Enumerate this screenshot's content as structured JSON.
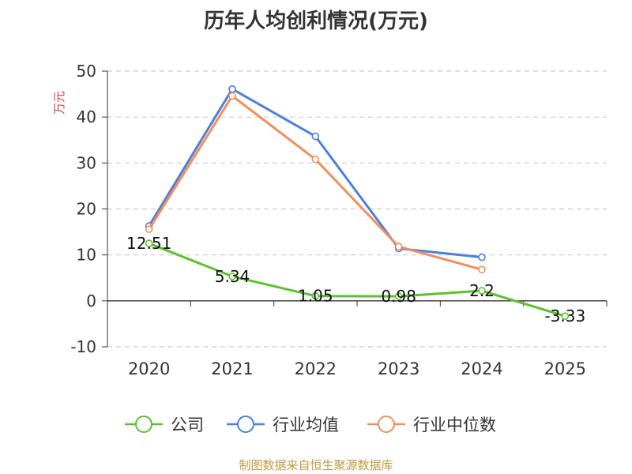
{
  "title": "历年人均创利情况(万元)",
  "source": "制图数据来自恒生聚源数据库",
  "chart_data": {
    "type": "line",
    "title": "历年人均创利情况(万元)",
    "ylabel": "万元",
    "xlabel": "",
    "categories": [
      "2020",
      "2021",
      "2022",
      "2023",
      "2024",
      "2025"
    ],
    "ylim": [
      -10,
      50
    ],
    "yticks": [
      -10,
      0,
      10,
      20,
      30,
      40,
      50
    ],
    "grid": true,
    "legend": "bottom",
    "series": [
      {
        "name": "公司",
        "color": "#5cc12d",
        "values": [
          12.51,
          5.34,
          1.05,
          0.98,
          2.2,
          -3.33
        ],
        "labels": [
          "12.51",
          "5.34",
          "1.05",
          "0.98",
          "2.2",
          "-3.33"
        ]
      },
      {
        "name": "行业均值",
        "color": "#4a7fe0",
        "values": [
          16.3,
          46.1,
          35.8,
          11.4,
          9.5,
          null
        ]
      },
      {
        "name": "行业中位数",
        "color": "#f28e5b",
        "values": [
          15.6,
          44.6,
          30.8,
          11.8,
          6.8,
          null
        ]
      }
    ]
  }
}
